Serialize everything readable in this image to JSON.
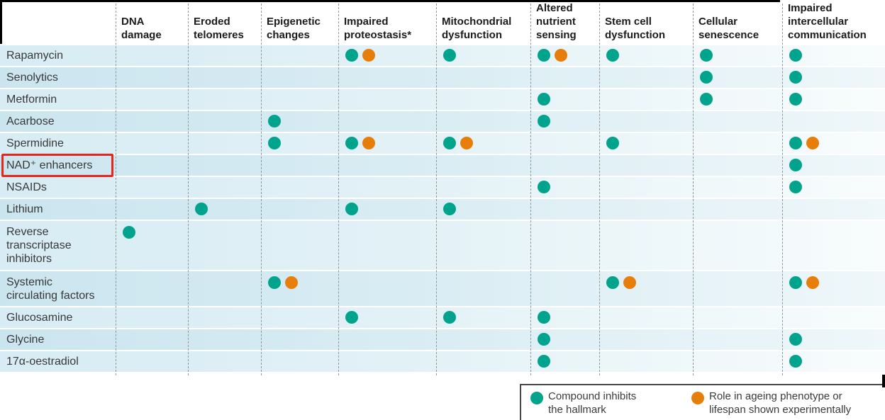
{
  "figure": {
    "colors": {
      "teal": "#00a38c",
      "orange": "#e87e0a",
      "highlight_red": "#e8251d"
    },
    "legend": {
      "teal_label": "Compound inhibits\nthe hallmark",
      "orange_label": "Role in ageing phenotype or\nlifespan shown experimentally"
    }
  },
  "chart_data": {
    "type": "heatmap",
    "description": "Dot matrix of compounds (rows) versus hallmarks of ageing (columns). T = teal dot (compound inhibits the hallmark); TO = teal dot plus orange dot (role in ageing phenotype or lifespan shown experimentally).",
    "columns": [
      "DNA\ndamage",
      "Eroded\ntelomeres",
      "Epigenetic\nchanges",
      "Impaired\nproteostasis*",
      "Mitochondrial\ndysfunction",
      "Altered\nnutrient\nsensing",
      "Stem cell\ndysfunction",
      "Cellular\nsenescence",
      "Impaired\nintercellular\ncommunication"
    ],
    "mark_codes": {
      "T": "Compound inhibits the hallmark (teal dot)",
      "TO": "Inhibits hallmark and role shown experimentally (teal + orange dots)"
    },
    "rows": [
      {
        "name": "Rapamycin",
        "highlight": false,
        "cells": [
          "",
          "",
          "",
          "TO",
          "T",
          "TO",
          "T",
          "T",
          "T"
        ]
      },
      {
        "name": "Senolytics",
        "highlight": false,
        "cells": [
          "",
          "",
          "",
          "",
          "",
          "",
          "",
          "T",
          "T"
        ]
      },
      {
        "name": "Metformin",
        "highlight": false,
        "cells": [
          "",
          "",
          "",
          "",
          "",
          "T",
          "",
          "T",
          "T"
        ]
      },
      {
        "name": "Acarbose",
        "highlight": false,
        "cells": [
          "",
          "",
          "T",
          "",
          "",
          "T",
          "",
          "",
          ""
        ]
      },
      {
        "name": "Spermidine",
        "highlight": false,
        "cells": [
          "",
          "",
          "T",
          "TO",
          "TO",
          "",
          "T",
          "",
          "TO"
        ]
      },
      {
        "name": "NAD⁺ enhancers",
        "highlight": true,
        "cells": [
          "",
          "",
          "",
          "",
          "",
          "",
          "",
          "",
          "T"
        ]
      },
      {
        "name": "NSAIDs",
        "highlight": false,
        "cells": [
          "",
          "",
          "",
          "",
          "",
          "T",
          "",
          "",
          "T"
        ]
      },
      {
        "name": "Lithium",
        "highlight": false,
        "cells": [
          "",
          "T",
          "",
          "T",
          "T",
          "",
          "",
          "",
          ""
        ]
      },
      {
        "name": "Reverse\ntranscriptase\ninhibitors",
        "highlight": false,
        "cells": [
          "T",
          "",
          "",
          "",
          "",
          "",
          "",
          "",
          ""
        ]
      },
      {
        "name": "Systemic\ncirculating factors",
        "highlight": false,
        "cells": [
          "",
          "",
          "TO",
          "",
          "",
          "",
          "TO",
          "",
          "TO"
        ]
      },
      {
        "name": "Glucosamine",
        "highlight": false,
        "cells": [
          "",
          "",
          "",
          "T",
          "T",
          "T",
          "",
          "",
          ""
        ]
      },
      {
        "name": "Glycine",
        "highlight": false,
        "cells": [
          "",
          "",
          "",
          "",
          "",
          "T",
          "",
          "",
          "T"
        ]
      },
      {
        "name": "17α-oestradiol",
        "highlight": false,
        "cells": [
          "",
          "",
          "",
          "",
          "",
          "T",
          "",
          "",
          "T"
        ]
      }
    ]
  }
}
